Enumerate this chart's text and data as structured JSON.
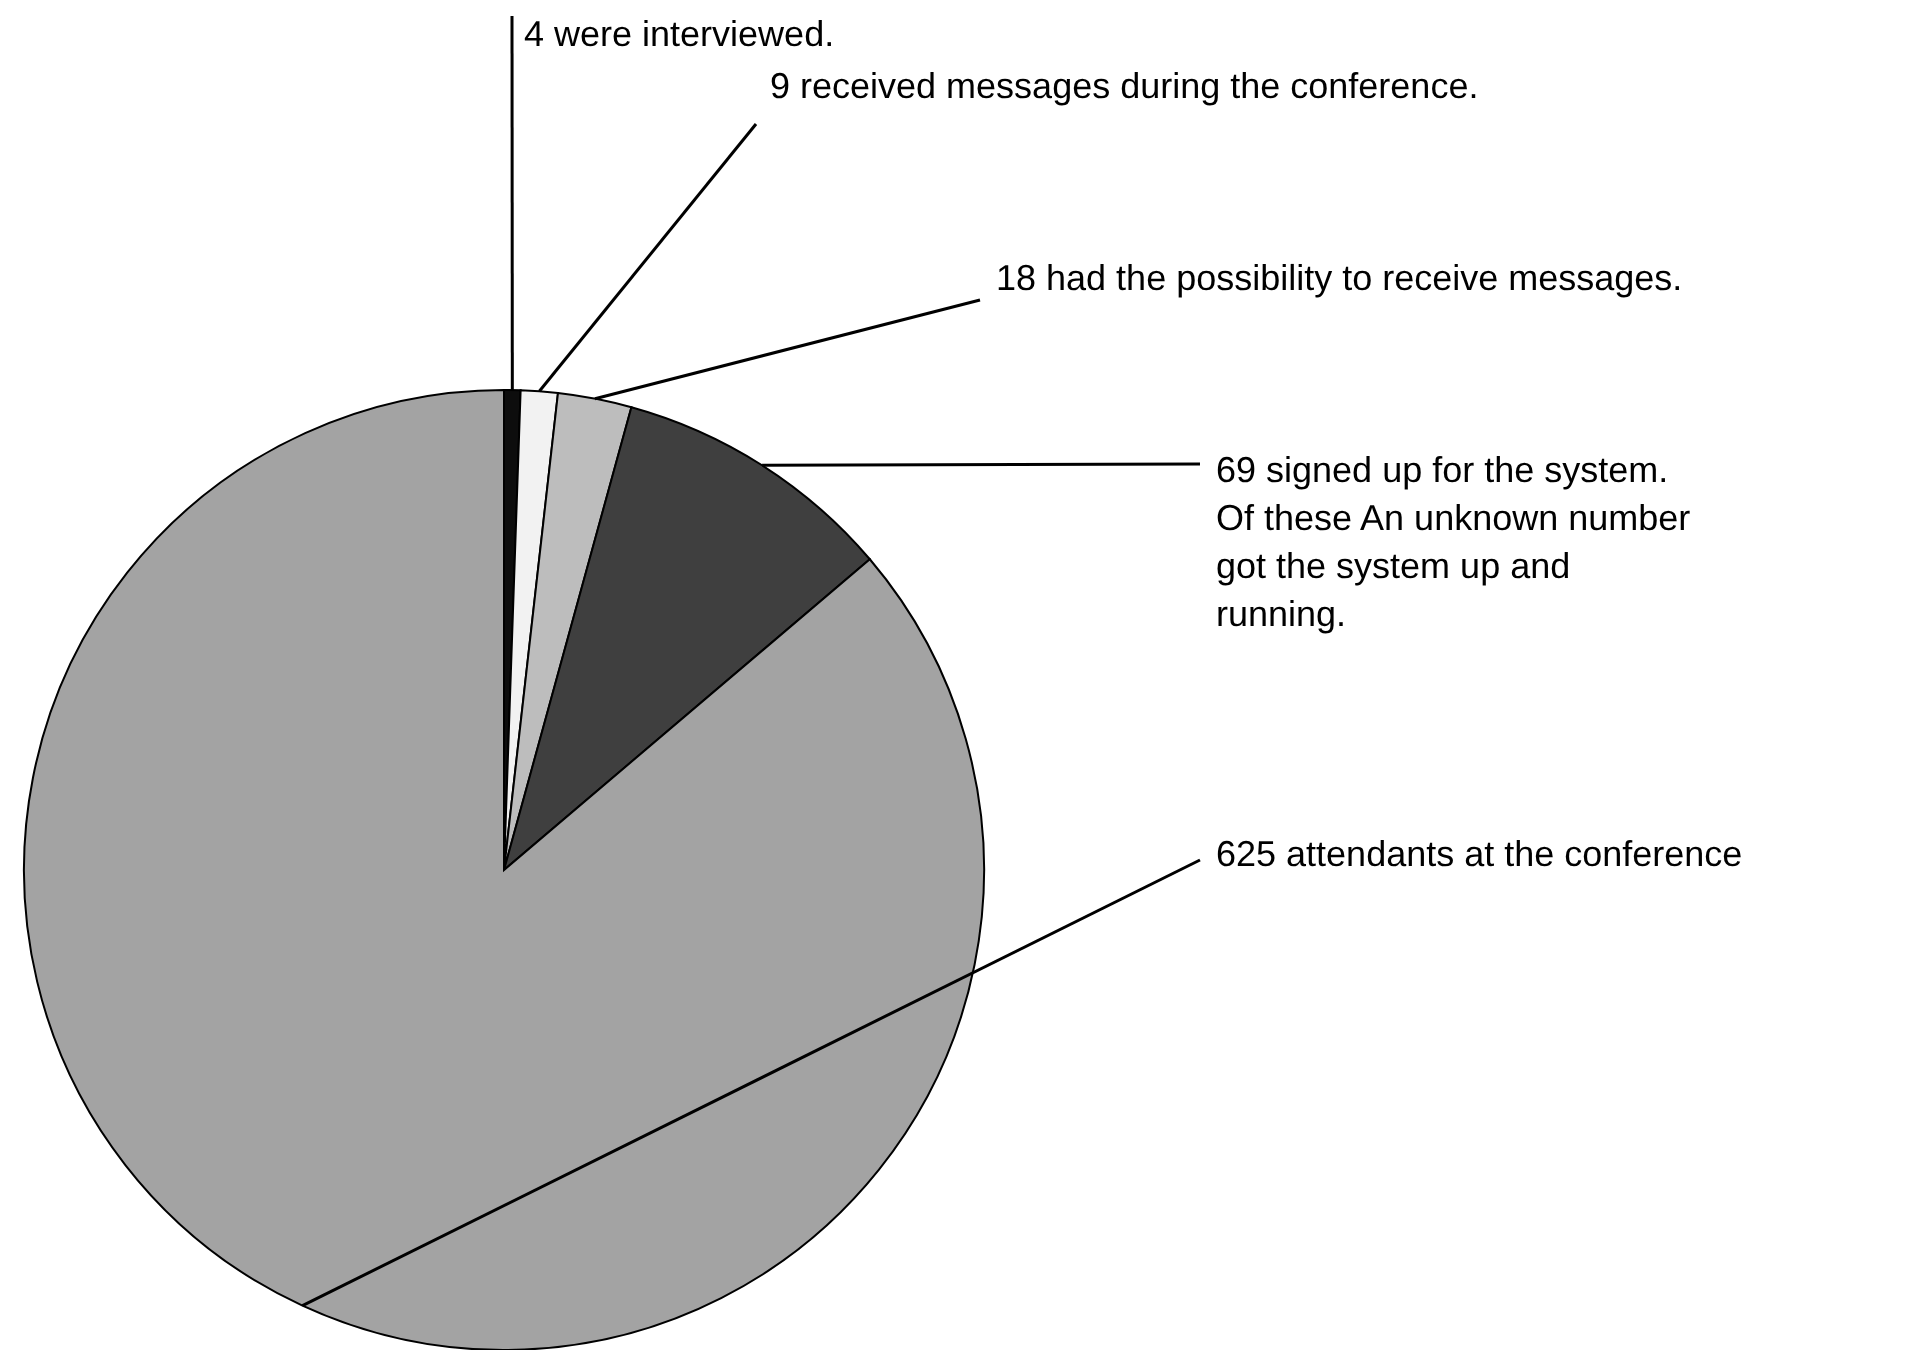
{
  "chart_data": {
    "type": "pie",
    "categories": [
      "4 were interviewed.",
      "9 received messages during the conference.",
      "18 had the possibility to receive messages.",
      "69 signed up for the system. Of these An unknown number got the system up and running.",
      "625 attendants at the conference"
    ],
    "values": [
      4,
      9,
      18,
      69,
      625
    ],
    "colors": [
      "#0d0d0d",
      "#f2f2f2",
      "#bdbdbd",
      "#3f3f3f",
      "#a3a3a3"
    ]
  }
}
